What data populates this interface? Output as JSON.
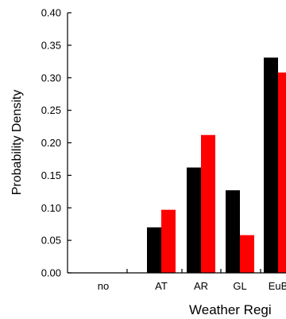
{
  "chart_data": {
    "type": "bar",
    "xlabel": "Weather Regi",
    "ylabel": "Probability Density",
    "categories": [
      "no",
      "AT",
      "AR",
      "GL",
      "EuB"
    ],
    "series": [
      {
        "color": "#000000",
        "values": [
          0.0,
          0.07,
          0.162,
          0.127,
          0.331
        ]
      },
      {
        "color": "#ff0000",
        "values": [
          0.0,
          0.097,
          0.212,
          0.058,
          0.308
        ]
      }
    ],
    "yticks": [
      "0.00",
      "0.05",
      "0.10",
      "0.15",
      "0.20",
      "0.25",
      "0.30",
      "0.35",
      "0.40"
    ],
    "ylim": [
      0,
      0.4
    ],
    "grid": false
  }
}
